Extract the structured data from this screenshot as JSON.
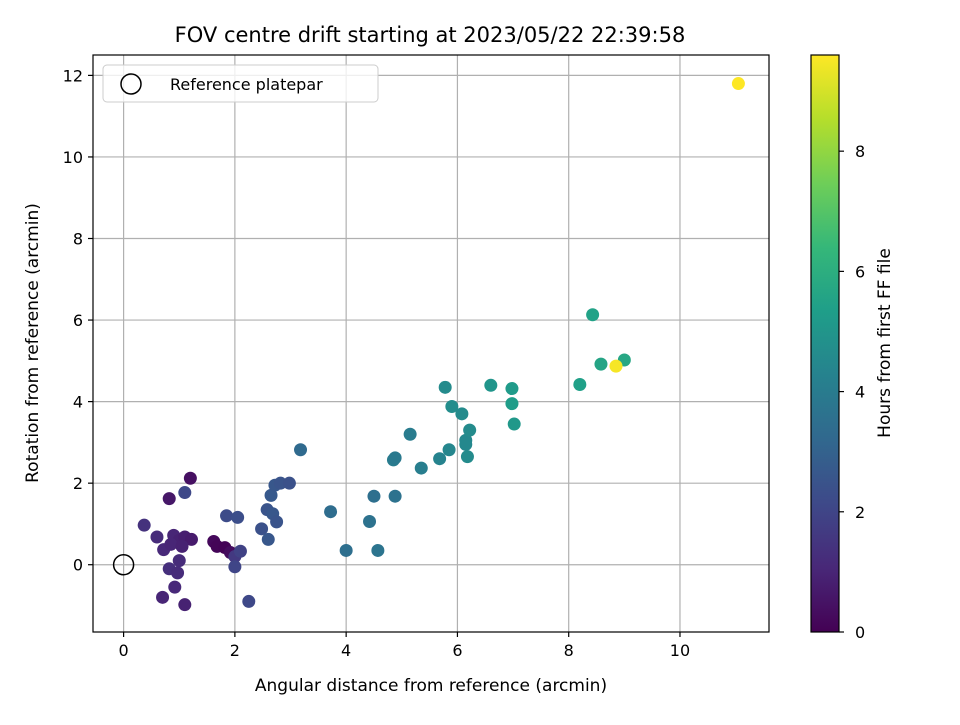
{
  "chart_data": {
    "type": "scatter",
    "title": "FOV centre drift starting at 2023/05/22 22:39:58",
    "xlabel": "Angular distance from reference (arcmin)",
    "ylabel": "Rotation from reference (arcmin)",
    "xlim": [
      -0.55,
      11.6
    ],
    "ylim": [
      -1.65,
      12.5
    ],
    "x_ticks": [
      0,
      2,
      4,
      6,
      8,
      10
    ],
    "y_ticks": [
      0,
      2,
      4,
      6,
      8,
      10,
      12
    ],
    "grid": true,
    "legend": {
      "placement": "top-left",
      "entries": [
        "Reference platepar"
      ]
    },
    "reference_point": {
      "x": 0,
      "y": 0
    },
    "colorbar": {
      "label": "Hours from first FF file",
      "range": [
        0,
        9.6
      ],
      "ticks": [
        0,
        2,
        4,
        6,
        8
      ],
      "colormap": "viridis",
      "colormap_stops": [
        "#440154",
        "#482878",
        "#3e4989",
        "#31688e",
        "#26828e",
        "#1f9e89",
        "#35b779",
        "#6ece58",
        "#b5de2b",
        "#fde725"
      ]
    },
    "points": [
      {
        "x": 1.2,
        "y": 2.12,
        "h": 0.4
      },
      {
        "x": 0.82,
        "y": 1.62,
        "h": 0.6
      },
      {
        "x": 1.1,
        "y": 1.77,
        "h": 2.1
      },
      {
        "x": 0.37,
        "y": 0.97,
        "h": 1.4
      },
      {
        "x": 0.6,
        "y": 0.68,
        "h": 1.2
      },
      {
        "x": 0.9,
        "y": 0.72,
        "h": 1.0
      },
      {
        "x": 1.0,
        "y": 0.6,
        "h": 0.9
      },
      {
        "x": 1.1,
        "y": 0.68,
        "h": 0.8
      },
      {
        "x": 1.22,
        "y": 0.62,
        "h": 0.7
      },
      {
        "x": 0.72,
        "y": 0.37,
        "h": 1.1
      },
      {
        "x": 0.85,
        "y": 0.5,
        "h": 1.0
      },
      {
        "x": 1.05,
        "y": 0.45,
        "h": 0.9
      },
      {
        "x": 1.0,
        "y": 0.1,
        "h": 1.2
      },
      {
        "x": 0.82,
        "y": -0.1,
        "h": 1.3
      },
      {
        "x": 0.97,
        "y": -0.2,
        "h": 1.2
      },
      {
        "x": 0.92,
        "y": -0.55,
        "h": 1.1
      },
      {
        "x": 0.7,
        "y": -0.8,
        "h": 1.0
      },
      {
        "x": 1.1,
        "y": -0.98,
        "h": 0.9
      },
      {
        "x": 1.62,
        "y": 0.57,
        "h": 0.2
      },
      {
        "x": 1.68,
        "y": 0.45,
        "h": 0.1
      },
      {
        "x": 1.82,
        "y": 0.42,
        "h": 0.05
      },
      {
        "x": 1.92,
        "y": 0.3,
        "h": 0.3
      },
      {
        "x": 2.0,
        "y": 0.2,
        "h": 1.6
      },
      {
        "x": 2.1,
        "y": 0.33,
        "h": 1.9
      },
      {
        "x": 2.0,
        "y": -0.05,
        "h": 2.0
      },
      {
        "x": 1.85,
        "y": 1.2,
        "h": 2.2
      },
      {
        "x": 2.05,
        "y": 1.16,
        "h": 2.3
      },
      {
        "x": 2.25,
        "y": -0.9,
        "h": 2.1
      },
      {
        "x": 2.48,
        "y": 0.88,
        "h": 2.4
      },
      {
        "x": 2.58,
        "y": 1.35,
        "h": 2.5
      },
      {
        "x": 2.68,
        "y": 1.25,
        "h": 2.6
      },
      {
        "x": 2.75,
        "y": 1.05,
        "h": 2.5
      },
      {
        "x": 2.6,
        "y": 0.62,
        "h": 2.6
      },
      {
        "x": 2.65,
        "y": 1.7,
        "h": 2.7
      },
      {
        "x": 2.72,
        "y": 1.95,
        "h": 2.6
      },
      {
        "x": 2.82,
        "y": 2.0,
        "h": 2.5
      },
      {
        "x": 2.98,
        "y": 2.0,
        "h": 2.4
      },
      {
        "x": 3.18,
        "y": 2.82,
        "h": 3.3
      },
      {
        "x": 3.72,
        "y": 1.3,
        "h": 3.4
      },
      {
        "x": 4.0,
        "y": 0.35,
        "h": 3.5
      },
      {
        "x": 4.42,
        "y": 1.06,
        "h": 3.6
      },
      {
        "x": 4.5,
        "y": 1.68,
        "h": 3.5
      },
      {
        "x": 4.57,
        "y": 0.35,
        "h": 3.7
      },
      {
        "x": 4.88,
        "y": 1.68,
        "h": 3.6
      },
      {
        "x": 4.85,
        "y": 2.57,
        "h": 4.0
      },
      {
        "x": 4.88,
        "y": 2.62,
        "h": 3.9
      },
      {
        "x": 5.15,
        "y": 3.2,
        "h": 4.0
      },
      {
        "x": 5.35,
        "y": 2.37,
        "h": 4.1
      },
      {
        "x": 5.68,
        "y": 2.6,
        "h": 4.3
      },
      {
        "x": 5.85,
        "y": 2.82,
        "h": 4.4
      },
      {
        "x": 5.78,
        "y": 4.35,
        "h": 4.6
      },
      {
        "x": 5.9,
        "y": 3.88,
        "h": 4.7
      },
      {
        "x": 6.08,
        "y": 3.7,
        "h": 4.6
      },
      {
        "x": 6.15,
        "y": 3.05,
        "h": 4.5
      },
      {
        "x": 6.15,
        "y": 2.95,
        "h": 4.5
      },
      {
        "x": 6.18,
        "y": 2.65,
        "h": 4.6
      },
      {
        "x": 6.22,
        "y": 3.3,
        "h": 4.6
      },
      {
        "x": 6.6,
        "y": 4.4,
        "h": 5.0
      },
      {
        "x": 6.98,
        "y": 4.32,
        "h": 5.2
      },
      {
        "x": 6.98,
        "y": 3.95,
        "h": 5.3
      },
      {
        "x": 7.02,
        "y": 3.45,
        "h": 5.1
      },
      {
        "x": 8.2,
        "y": 4.42,
        "h": 5.4
      },
      {
        "x": 8.43,
        "y": 6.13,
        "h": 5.5
      },
      {
        "x": 8.58,
        "y": 4.92,
        "h": 5.6
      },
      {
        "x": 9.0,
        "y": 5.02,
        "h": 5.7
      },
      {
        "x": 8.85,
        "y": 4.87,
        "h": 9.5
      },
      {
        "x": 11.05,
        "y": 11.8,
        "h": 9.6
      }
    ]
  }
}
